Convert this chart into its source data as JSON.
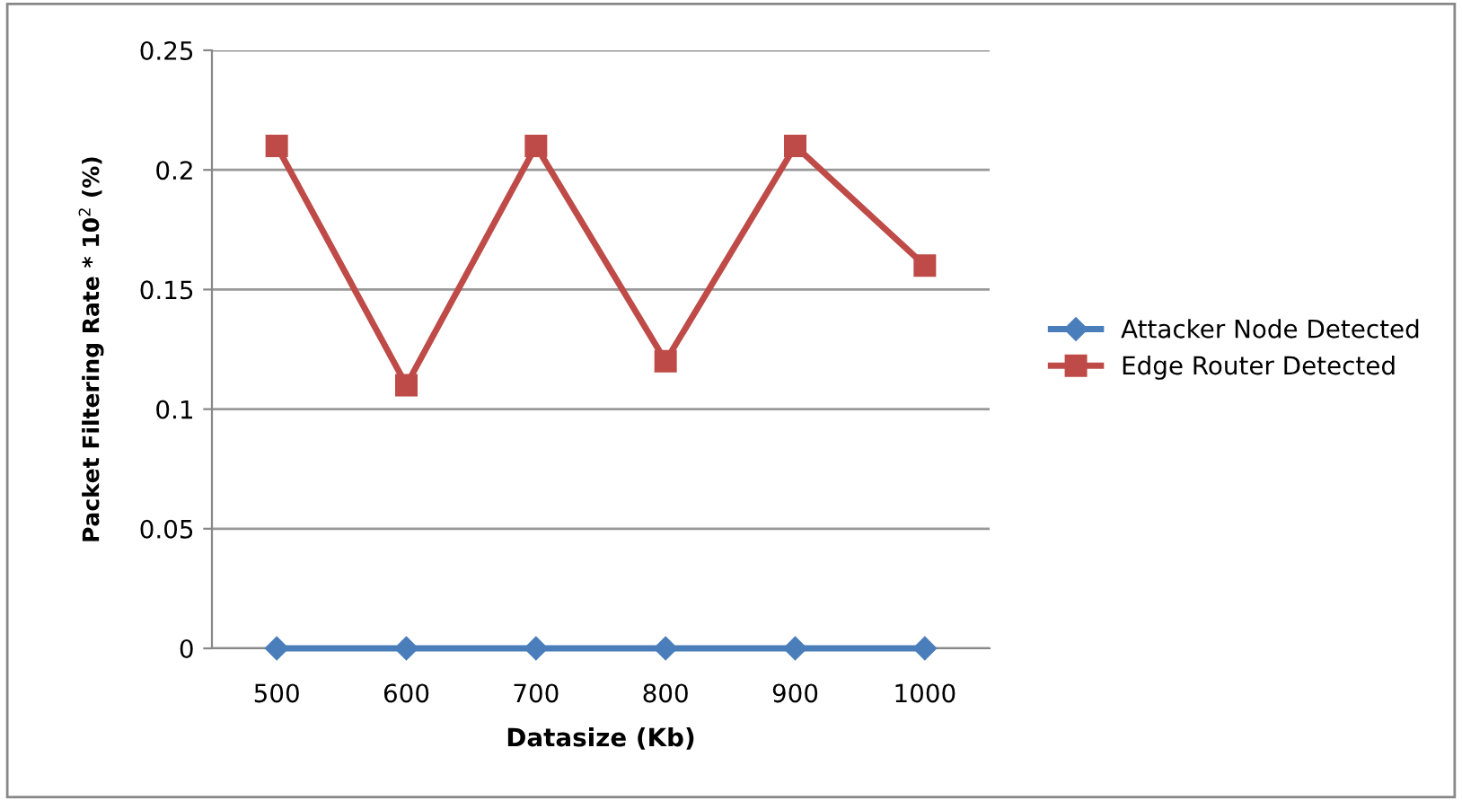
{
  "chart_data": {
    "type": "line",
    "xlabel": "Datasize (Kb)",
    "ylabel": "Packet Filtering Rate * 10$^{2}$ (%)",
    "categories": [
      "500",
      "600",
      "700",
      "800",
      "900",
      "1000"
    ],
    "series": [
      {
        "name": "Attacker Node Detected",
        "color": "#4a7ebb",
        "marker": "diamond",
        "values": [
          0,
          0,
          0,
          0,
          0,
          0
        ]
      },
      {
        "name": "Edge Router Detected",
        "color": "#be4b48",
        "marker": "square",
        "values": [
          0.21,
          0.11,
          0.21,
          0.12,
          0.21,
          0.16
        ]
      }
    ],
    "ylim": [
      0,
      0.25
    ],
    "yticks": [
      0,
      0.05,
      0.1,
      0.15,
      0.2,
      0.25
    ],
    "grid": "y",
    "legend": "right",
    "line_style": "solid"
  }
}
